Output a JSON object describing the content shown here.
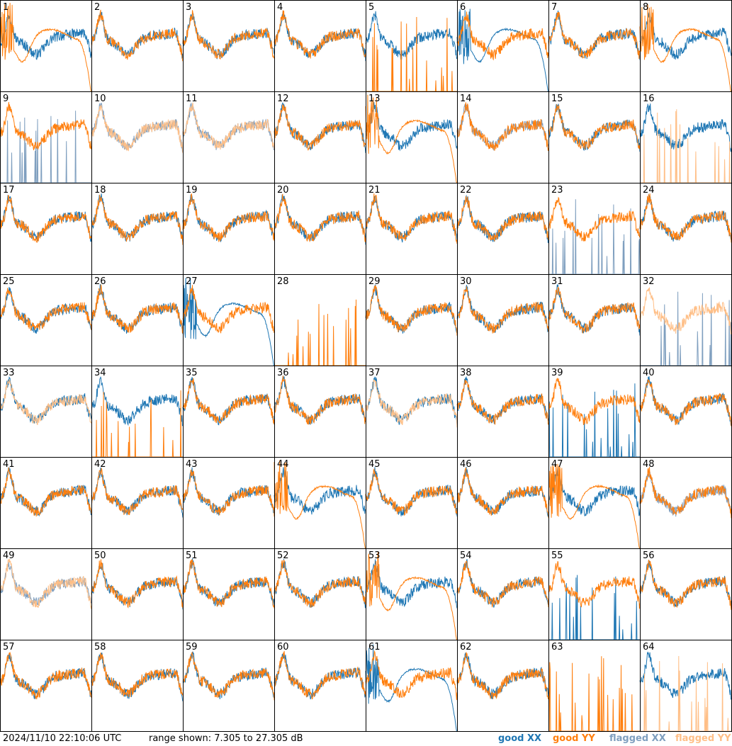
{
  "chart_data": {
    "type": "line",
    "layout": "8x8 small multiples",
    "units": "dB",
    "ylim": [
      7.305,
      27.305
    ],
    "series_kinds": [
      "good XX",
      "good YY",
      "flagged XX",
      "flagged YY"
    ],
    "colors": {
      "good_xx": "#1f77b4",
      "good_yy": "#ff7f0e",
      "flagged_xx": "#7f9fbf",
      "flagged_yy": "#ffbf87",
      "frame": "#000000"
    },
    "panels": [
      {
        "id": "1",
        "xx": "good",
        "yy": "good",
        "profile_xx": "normal",
        "profile_yy": "rolloff"
      },
      {
        "id": "2",
        "xx": "good",
        "yy": "good",
        "profile_xx": "normal",
        "profile_yy": "normal"
      },
      {
        "id": "3",
        "xx": "good",
        "yy": "good",
        "profile_xx": "normal",
        "profile_yy": "normal"
      },
      {
        "id": "4",
        "xx": "good",
        "yy": "good",
        "profile_xx": "normal",
        "profile_yy": "normal"
      },
      {
        "id": "5",
        "xx": "good",
        "yy": "good",
        "profile_xx": "normal",
        "profile_yy": "spikes"
      },
      {
        "id": "6",
        "xx": "good",
        "yy": "good",
        "profile_xx": "rolloff",
        "profile_yy": "normal"
      },
      {
        "id": "7",
        "xx": "good",
        "yy": "good",
        "profile_xx": "normal",
        "profile_yy": "normal"
      },
      {
        "id": "8",
        "xx": "good",
        "yy": "good",
        "profile_xx": "normal",
        "profile_yy": "rolloff"
      },
      {
        "id": "9",
        "xx": "flagged",
        "yy": "good",
        "profile_xx": "spikes",
        "profile_yy": "normal"
      },
      {
        "id": "10",
        "xx": "flagged",
        "yy": "flagged",
        "profile_xx": "normal",
        "profile_yy": "normal"
      },
      {
        "id": "11",
        "xx": "flagged",
        "yy": "flagged",
        "profile_xx": "normal",
        "profile_yy": "normal"
      },
      {
        "id": "12",
        "xx": "good",
        "yy": "good",
        "profile_xx": "normal",
        "profile_yy": "normal"
      },
      {
        "id": "13",
        "xx": "good",
        "yy": "good",
        "profile_xx": "normal",
        "profile_yy": "rolloff"
      },
      {
        "id": "14",
        "xx": "flagged",
        "yy": "good",
        "profile_xx": "normal",
        "profile_yy": "normal"
      },
      {
        "id": "15",
        "xx": "good",
        "yy": "good",
        "profile_xx": "normal",
        "profile_yy": "normal"
      },
      {
        "id": "16",
        "xx": "good",
        "yy": "flagged",
        "profile_xx": "normal",
        "profile_yy": "spikes"
      },
      {
        "id": "17",
        "xx": "good",
        "yy": "good",
        "profile_xx": "normal",
        "profile_yy": "normal"
      },
      {
        "id": "18",
        "xx": "good",
        "yy": "good",
        "profile_xx": "normal",
        "profile_yy": "normal"
      },
      {
        "id": "19",
        "xx": "good",
        "yy": "good",
        "profile_xx": "normal",
        "profile_yy": "normal"
      },
      {
        "id": "20",
        "xx": "good",
        "yy": "good",
        "profile_xx": "normal",
        "profile_yy": "normal"
      },
      {
        "id": "21",
        "xx": "good",
        "yy": "good",
        "profile_xx": "normal",
        "profile_yy": "normal"
      },
      {
        "id": "22",
        "xx": "good",
        "yy": "good",
        "profile_xx": "normal",
        "profile_yy": "normal"
      },
      {
        "id": "23",
        "xx": "flagged",
        "yy": "good",
        "profile_xx": "spikes",
        "profile_yy": "normal"
      },
      {
        "id": "24",
        "xx": "good",
        "yy": "good",
        "profile_xx": "normal",
        "profile_yy": "normal"
      },
      {
        "id": "25",
        "xx": "good",
        "yy": "good",
        "profile_xx": "normal",
        "profile_yy": "normal"
      },
      {
        "id": "26",
        "xx": "good",
        "yy": "good",
        "profile_xx": "normal",
        "profile_yy": "normal"
      },
      {
        "id": "27",
        "xx": "good",
        "yy": "good",
        "profile_xx": "rolloff",
        "profile_yy": "normal"
      },
      {
        "id": "28",
        "xx": "good",
        "yy": "good",
        "profile_xx": "flat",
        "profile_yy": "spikes"
      },
      {
        "id": "29",
        "xx": "good",
        "yy": "good",
        "profile_xx": "normal",
        "profile_yy": "normal"
      },
      {
        "id": "30",
        "xx": "good",
        "yy": "good",
        "profile_xx": "normal",
        "profile_yy": "normal"
      },
      {
        "id": "31",
        "xx": "good",
        "yy": "good",
        "profile_xx": "normal",
        "profile_yy": "normal"
      },
      {
        "id": "32",
        "xx": "flagged",
        "yy": "flagged",
        "profile_xx": "spikes",
        "profile_yy": "normal"
      },
      {
        "id": "33",
        "xx": "good",
        "yy": "flagged",
        "profile_xx": "normal",
        "profile_yy": "normal"
      },
      {
        "id": "34",
        "xx": "good",
        "yy": "good",
        "profile_xx": "normal",
        "profile_yy": "spikes"
      },
      {
        "id": "35",
        "xx": "good",
        "yy": "good",
        "profile_xx": "normal",
        "profile_yy": "normal"
      },
      {
        "id": "36",
        "xx": "good",
        "yy": "good",
        "profile_xx": "normal",
        "profile_yy": "normal"
      },
      {
        "id": "37",
        "xx": "good",
        "yy": "flagged",
        "profile_xx": "normal",
        "profile_yy": "normal"
      },
      {
        "id": "38",
        "xx": "good",
        "yy": "good",
        "profile_xx": "normal",
        "profile_yy": "normal"
      },
      {
        "id": "39",
        "xx": "good",
        "yy": "good",
        "profile_xx": "spikes",
        "profile_yy": "normal"
      },
      {
        "id": "40",
        "xx": "good",
        "yy": "good",
        "profile_xx": "normal",
        "profile_yy": "normal"
      },
      {
        "id": "41",
        "xx": "good",
        "yy": "good",
        "profile_xx": "normal",
        "profile_yy": "normal"
      },
      {
        "id": "42",
        "xx": "good",
        "yy": "good",
        "profile_xx": "normal",
        "profile_yy": "normal"
      },
      {
        "id": "43",
        "xx": "good",
        "yy": "good",
        "profile_xx": "normal",
        "profile_yy": "normal"
      },
      {
        "id": "44",
        "xx": "good",
        "yy": "good",
        "profile_xx": "normal",
        "profile_yy": "rolloff"
      },
      {
        "id": "45",
        "xx": "good",
        "yy": "good",
        "profile_xx": "normal",
        "profile_yy": "normal"
      },
      {
        "id": "46",
        "xx": "good",
        "yy": "good",
        "profile_xx": "normal",
        "profile_yy": "normal"
      },
      {
        "id": "47",
        "xx": "good",
        "yy": "good",
        "profile_xx": "normal",
        "profile_yy": "rolloff"
      },
      {
        "id": "48",
        "xx": "flagged",
        "yy": "good",
        "profile_xx": "normal",
        "profile_yy": "normal"
      },
      {
        "id": "49",
        "xx": "flagged",
        "yy": "flagged",
        "profile_xx": "normal",
        "profile_yy": "normal"
      },
      {
        "id": "50",
        "xx": "good",
        "yy": "good",
        "profile_xx": "normal",
        "profile_yy": "normal"
      },
      {
        "id": "51",
        "xx": "good",
        "yy": "good",
        "profile_xx": "normal",
        "profile_yy": "normal"
      },
      {
        "id": "52",
        "xx": "good",
        "yy": "good",
        "profile_xx": "normal",
        "profile_yy": "normal"
      },
      {
        "id": "53",
        "xx": "good",
        "yy": "good",
        "profile_xx": "normal",
        "profile_yy": "rolloff"
      },
      {
        "id": "54",
        "xx": "good",
        "yy": "good",
        "profile_xx": "normal",
        "profile_yy": "normal"
      },
      {
        "id": "55",
        "xx": "good",
        "yy": "good",
        "profile_xx": "spikes",
        "profile_yy": "normal"
      },
      {
        "id": "56",
        "xx": "good",
        "yy": "good",
        "profile_xx": "normal",
        "profile_yy": "normal"
      },
      {
        "id": "57",
        "xx": "good",
        "yy": "good",
        "profile_xx": "normal",
        "profile_yy": "normal"
      },
      {
        "id": "58",
        "xx": "good",
        "yy": "good",
        "profile_xx": "normal",
        "profile_yy": "normal"
      },
      {
        "id": "59",
        "xx": "good",
        "yy": "good",
        "profile_xx": "normal",
        "profile_yy": "normal"
      },
      {
        "id": "60",
        "xx": "good",
        "yy": "good",
        "profile_xx": "normal",
        "profile_yy": "normal"
      },
      {
        "id": "61",
        "xx": "good",
        "yy": "good",
        "profile_xx": "rolloff",
        "profile_yy": "normal"
      },
      {
        "id": "62",
        "xx": "good",
        "yy": "good",
        "profile_xx": "normal",
        "profile_yy": "normal"
      },
      {
        "id": "63",
        "xx": "good",
        "yy": "good",
        "profile_xx": "flat",
        "profile_yy": "spikes"
      },
      {
        "id": "64",
        "xx": "good",
        "yy": "flagged",
        "profile_xx": "normal",
        "profile_yy": "spikes"
      }
    ]
  },
  "footer": {
    "timestamp": "2024/11/10 22:10:06 UTC",
    "range_text": "range shown: 7.305 to 27.305 dB",
    "legend_good_xx": "good XX",
    "legend_good_yy": "good YY",
    "legend_flagged_xx": "flagged XX",
    "legend_flagged_yy": "flagged YY"
  }
}
